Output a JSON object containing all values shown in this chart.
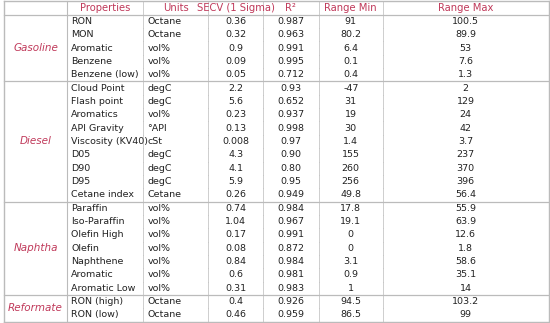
{
  "header": [
    "Properties",
    "Units",
    "SECV (1 Sigma)",
    "R²",
    "Range Min",
    "Range Max"
  ],
  "groups": [
    {
      "label": "Gasoline",
      "rows": [
        [
          "RON",
          "Octane",
          "0.36",
          "0.987",
          "91",
          "100.5"
        ],
        [
          "MON",
          "Octane",
          "0.32",
          "0.963",
          "80.2",
          "89.9"
        ],
        [
          "Aromatic",
          "vol%",
          "0.9",
          "0.991",
          "6.4",
          "53"
        ],
        [
          "Benzene",
          "vol%",
          "0.09",
          "0.995",
          "0.1",
          "7.6"
        ],
        [
          "Benzene (low)",
          "vol%",
          "0.05",
          "0.712",
          "0.4",
          "1.3"
        ]
      ]
    },
    {
      "label": "Diesel",
      "rows": [
        [
          "Cloud Point",
          "degC",
          "2.2",
          "0.93",
          "-47",
          "2"
        ],
        [
          "Flash point",
          "degC",
          "5.6",
          "0.652",
          "31",
          "129"
        ],
        [
          "Aromatics",
          "vol%",
          "0.23",
          "0.937",
          "19",
          "24"
        ],
        [
          "API Gravity",
          "°API",
          "0.13",
          "0.998",
          "30",
          "42"
        ],
        [
          "Viscosity (KV40)",
          "cSt",
          "0.008",
          "0.97",
          "1.4",
          "3.7"
        ],
        [
          "D05",
          "degC",
          "4.3",
          "0.90",
          "155",
          "237"
        ],
        [
          "D90",
          "degC",
          "4.1",
          "0.80",
          "260",
          "370"
        ],
        [
          "D95",
          "degC",
          "5.9",
          "0.95",
          "256",
          "396"
        ],
        [
          "Cetane index",
          "Cetane",
          "0.26",
          "0.949",
          "49.8",
          "56.4"
        ]
      ]
    },
    {
      "label": "Naphtha",
      "rows": [
        [
          "Paraffin",
          "vol%",
          "0.74",
          "0.984",
          "17.8",
          "55.9"
        ],
        [
          "Iso-Paraffin",
          "vol%",
          "1.04",
          "0.967",
          "19.1",
          "63.9"
        ],
        [
          "Olefin High",
          "vol%",
          "0.17",
          "0.991",
          "0",
          "12.6"
        ],
        [
          "Olefin",
          "vol%",
          "0.08",
          "0.872",
          "0",
          "1.8"
        ],
        [
          "Naphthene",
          "vol%",
          "0.84",
          "0.984",
          "3.1",
          "58.6"
        ],
        [
          "Aromatic",
          "vol%",
          "0.6",
          "0.981",
          "0.9",
          "35.1"
        ],
        [
          "Aromatic Low",
          "vol%",
          "0.31",
          "0.983",
          "1",
          "14"
        ]
      ]
    },
    {
      "label": "Reformate",
      "rows": [
        [
          "RON (high)",
          "Octane",
          "0.4",
          "0.926",
          "94.5",
          "103.2"
        ],
        [
          "RON (low)",
          "Octane",
          "0.46",
          "0.959",
          "86.5",
          "99"
        ]
      ]
    }
  ],
  "header_color": "#c0395a",
  "label_color": "#c0395a",
  "text_color": "#222222",
  "bg_color": "#ffffff",
  "line_color": "#bbbbbb",
  "header_font_size": 7.2,
  "cell_font_size": 6.8,
  "label_font_size": 7.5
}
